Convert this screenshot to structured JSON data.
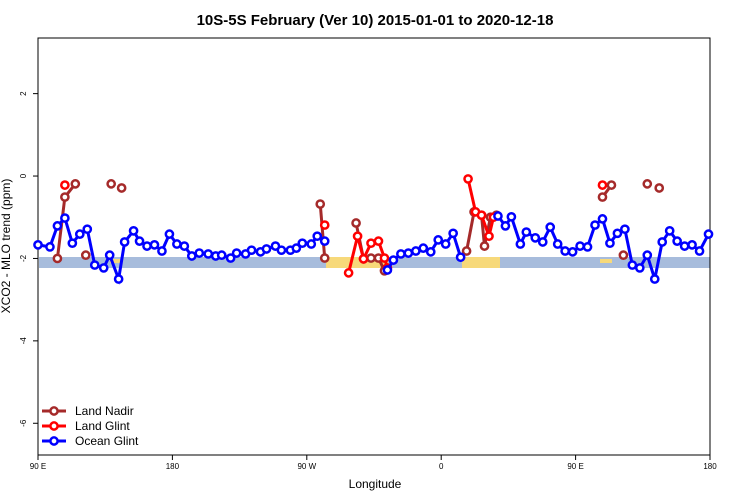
{
  "chart_data": {
    "type": "line",
    "title": "10S-5S February (Ver 10)   2015-01-01 to 2020-12-18",
    "xlabel": "Longitude",
    "ylabel": "XCO2 - MLO trend (ppm)",
    "xlim": [
      90,
      540
    ],
    "ylim": [
      -6.77,
      3.35
    ],
    "xticks": [
      {
        "value": 90,
        "label": "90 E"
      },
      180,
      {
        "value": 270,
        "label": "90 W"
      },
      {
        "value": 360,
        "label": "0"
      },
      {
        "value": 450,
        "label": "90 E"
      },
      {
        "value": 540,
        "label": "180"
      }
    ],
    "yticks": [
      -6,
      -4,
      -2,
      0,
      2
    ],
    "legend": "bottom-left",
    "series": [
      {
        "name": "Land Nadir",
        "color": "#a52a2a",
        "x": [
          103,
          108,
          115,
          null,
          122,
          null,
          139,
          null,
          146,
          null,
          279,
          282,
          null,
          303,
          308,
          313,
          318,
          322,
          null,
          377,
          382,
          387,
          389,
          393,
          397,
          null,
          468,
          474,
          null,
          482,
          null,
          498,
          null,
          506
        ],
        "values": [
          -2.0,
          -0.51,
          -0.19,
          null,
          -1.92,
          null,
          -0.19,
          null,
          -0.29,
          null,
          -0.68,
          -1.99,
          null,
          -1.14,
          -2.01,
          -1.99,
          -1.99,
          -2.3,
          null,
          -1.82,
          -0.87,
          -0.95,
          -1.7,
          -1.0,
          -0.95,
          null,
          -0.51,
          -0.22,
          null,
          -1.92,
          null,
          -0.19,
          null,
          -0.29
        ]
      },
      {
        "name": "Land Glint",
        "color": "#ff0000",
        "x": [
          108,
          null,
          282,
          null,
          298,
          304,
          308,
          313,
          318,
          322,
          324,
          null,
          378,
          383,
          387,
          392,
          395,
          null,
          468
        ],
        "values": [
          -0.22,
          null,
          -1.19,
          null,
          -2.35,
          -1.46,
          -2.01,
          -1.63,
          -1.58,
          -1.99,
          -2.23,
          null,
          -0.07,
          -0.87,
          -0.95,
          -1.46,
          -1.0,
          null,
          -0.22
        ]
      },
      {
        "name": "Ocean Glint",
        "color": "#0000ff",
        "x": [
          90,
          98,
          103,
          108,
          113,
          118,
          123,
          128,
          134,
          138,
          144,
          148,
          154,
          158,
          163,
          168,
          173,
          178,
          183,
          188,
          193,
          198,
          204,
          209,
          213,
          219,
          223,
          229,
          233,
          239,
          243,
          249,
          253,
          259,
          263,
          267,
          273,
          277,
          282,
          null,
          324,
          328,
          333,
          338,
          343,
          348,
          353,
          358,
          363,
          368,
          373,
          null,
          398,
          403,
          407,
          413,
          417,
          423,
          428,
          433,
          438,
          443,
          448,
          453,
          458,
          463,
          468,
          473,
          478,
          483,
          488,
          493,
          498,
          503,
          508,
          513,
          518,
          523,
          528,
          533,
          539
        ],
        "values": [
          -1.67,
          -1.72,
          -1.21,
          -1.02,
          -1.63,
          -1.41,
          -1.29,
          -2.16,
          -2.23,
          -1.92,
          -2.5,
          -1.6,
          -1.33,
          -1.58,
          -1.7,
          -1.67,
          -1.82,
          -1.41,
          -1.65,
          -1.7,
          -1.94,
          -1.87,
          -1.89,
          -1.94,
          -1.92,
          -1.99,
          -1.87,
          -1.89,
          -1.8,
          -1.84,
          -1.77,
          -1.7,
          -1.8,
          -1.8,
          -1.75,
          -1.63,
          -1.65,
          -1.46,
          -1.58,
          null,
          -2.28,
          -2.04,
          -1.89,
          -1.87,
          -1.82,
          -1.75,
          -1.84,
          -1.55,
          -1.65,
          -1.39,
          -1.97,
          null,
          -0.97,
          -1.21,
          -0.99,
          -1.65,
          -1.36,
          -1.5,
          -1.6,
          -1.24,
          -1.65,
          -1.82,
          -1.84,
          -1.7,
          -1.72,
          -1.19,
          -1.04,
          -1.63,
          -1.39,
          -1.29,
          -2.16,
          -2.23,
          -1.92,
          -2.5,
          -1.6,
          -1.33,
          -1.58,
          -1.7,
          -1.67,
          -1.82,
          -1.41
        ]
      }
    ]
  }
}
